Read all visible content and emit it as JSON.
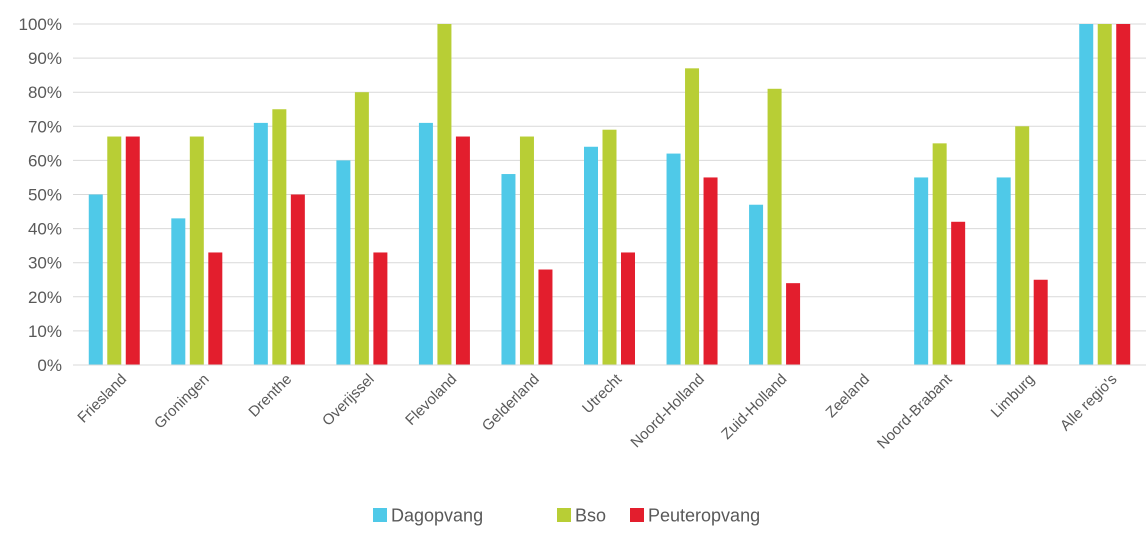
{
  "chart_data": {
    "type": "bar",
    "title": "",
    "xlabel": "",
    "ylabel": "",
    "ylim": [
      0,
      100
    ],
    "y_ticks": [
      "0%",
      "10%",
      "20%",
      "30%",
      "40%",
      "50%",
      "60%",
      "70%",
      "80%",
      "90%",
      "100%"
    ],
    "grid": true,
    "legend_position": "bottom",
    "categories": [
      "Friesland",
      "Groningen",
      "Drenthe",
      "Overijssel",
      "Flevoland",
      "Gelderland",
      "Utrecht",
      "Noord-Holland",
      "Zuid-Holland",
      "Zeeland",
      "Noord-Brabant",
      "Limburg",
      "Alle regio's"
    ],
    "series": [
      {
        "name": "Dagopvang",
        "color": "#4FC9E8",
        "values": [
          50,
          43,
          71,
          60,
          71,
          56,
          64,
          62,
          47,
          null,
          55,
          55,
          100
        ]
      },
      {
        "name": "Bso",
        "color": "#B8CE35",
        "values": [
          67,
          67,
          75,
          80,
          100,
          67,
          69,
          87,
          81,
          null,
          65,
          70,
          100
        ]
      },
      {
        "name": "Peuteropvang",
        "color": "#E31E2D",
        "values": [
          67,
          33,
          50,
          33,
          67,
          28,
          33,
          55,
          24,
          null,
          42,
          25,
          100
        ]
      }
    ]
  }
}
